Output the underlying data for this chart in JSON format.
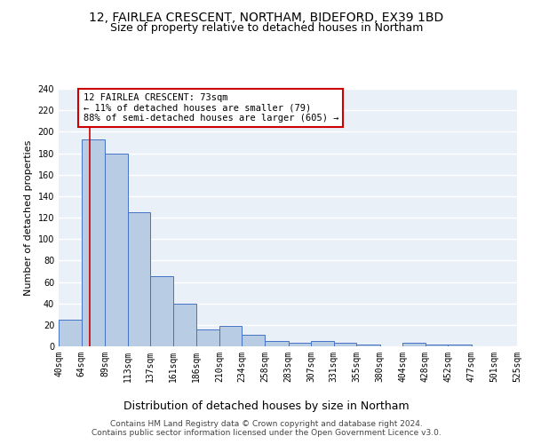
{
  "title1": "12, FAIRLEA CRESCENT, NORTHAM, BIDEFORD, EX39 1BD",
  "title2": "Size of property relative to detached houses in Northam",
  "xlabel": "Distribution of detached houses by size in Northam",
  "ylabel": "Number of detached properties",
  "bar_values": [
    25,
    193,
    180,
    125,
    65,
    40,
    16,
    19,
    11,
    5,
    3,
    5,
    3,
    2,
    0,
    3,
    2,
    2,
    0,
    0
  ],
  "bin_edges": [
    40,
    64,
    89,
    113,
    137,
    161,
    186,
    210,
    234,
    258,
    283,
    307,
    331,
    355,
    380,
    404,
    428,
    452,
    477,
    501,
    525
  ],
  "tick_labels": [
    "40sqm",
    "64sqm",
    "89sqm",
    "113sqm",
    "137sqm",
    "161sqm",
    "186sqm",
    "210sqm",
    "234sqm",
    "258sqm",
    "283sqm",
    "307sqm",
    "331sqm",
    "355sqm",
    "380sqm",
    "404sqm",
    "428sqm",
    "452sqm",
    "477sqm",
    "501sqm",
    "525sqm"
  ],
  "bar_color": "#b8cce4",
  "bar_edge_color": "#4472c4",
  "vline_x": 73,
  "vline_color": "#cc0000",
  "annotation_box_text": "12 FAIRLEA CRESCENT: 73sqm\n← 11% of detached houses are smaller (79)\n88% of semi-detached houses are larger (605) →",
  "annotation_box_color": "#ffffff",
  "annotation_box_edge": "#cc0000",
  "ylim": [
    0,
    240
  ],
  "yticks": [
    0,
    20,
    40,
    60,
    80,
    100,
    120,
    140,
    160,
    180,
    200,
    220,
    240
  ],
  "bg_color": "#eaf0f8",
  "grid_color": "#ffffff",
  "footer_text": "Contains HM Land Registry data © Crown copyright and database right 2024.\nContains public sector information licensed under the Open Government Licence v3.0.",
  "title1_fontsize": 10,
  "title2_fontsize": 9,
  "ylabel_fontsize": 8,
  "xlabel_fontsize": 9,
  "tick_fontsize": 7,
  "footer_fontsize": 6.5,
  "ann_fontsize": 7.5
}
